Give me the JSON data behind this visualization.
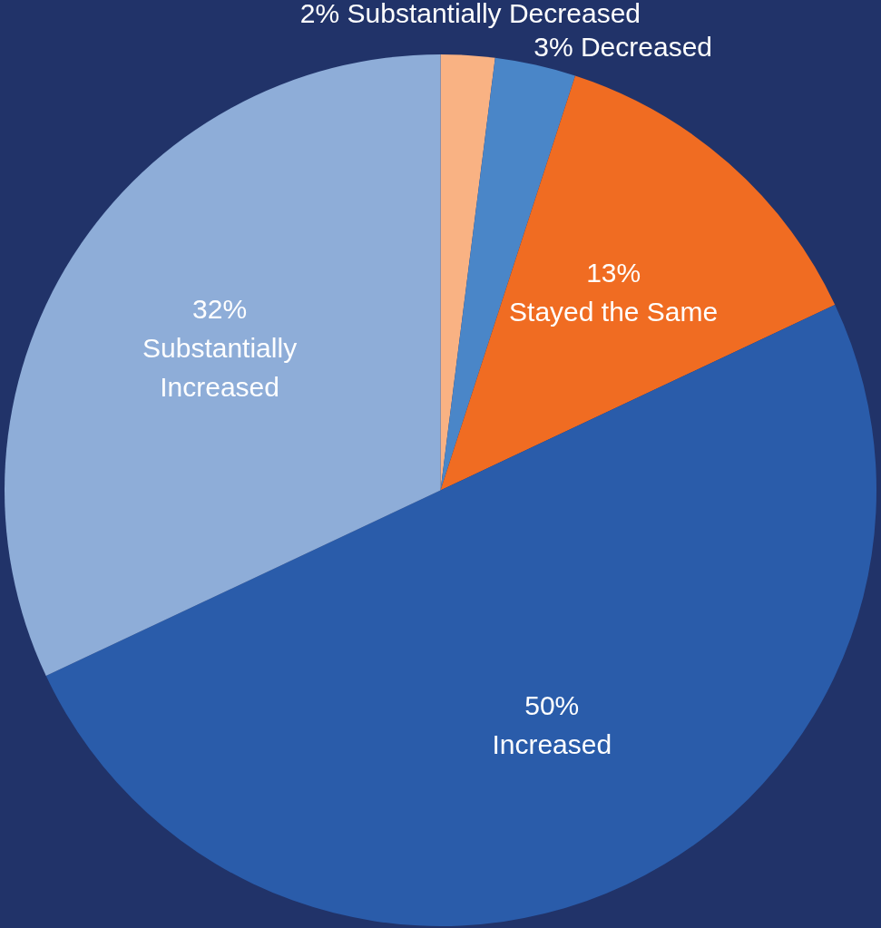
{
  "chart_data": {
    "type": "pie",
    "categories": [
      "Substantially Decreased",
      "Decreased",
      "Stayed the Same",
      "Increased",
      "Substantially Increased"
    ],
    "values": [
      2,
      3,
      13,
      50,
      32
    ],
    "value_labels": [
      "2%",
      "3%",
      "13%",
      "50%",
      "32%"
    ],
    "colors": [
      "#f9b283",
      "#4a86c8",
      "#f06c22",
      "#2a5caa",
      "#8eadd8"
    ],
    "legend": false
  }
}
